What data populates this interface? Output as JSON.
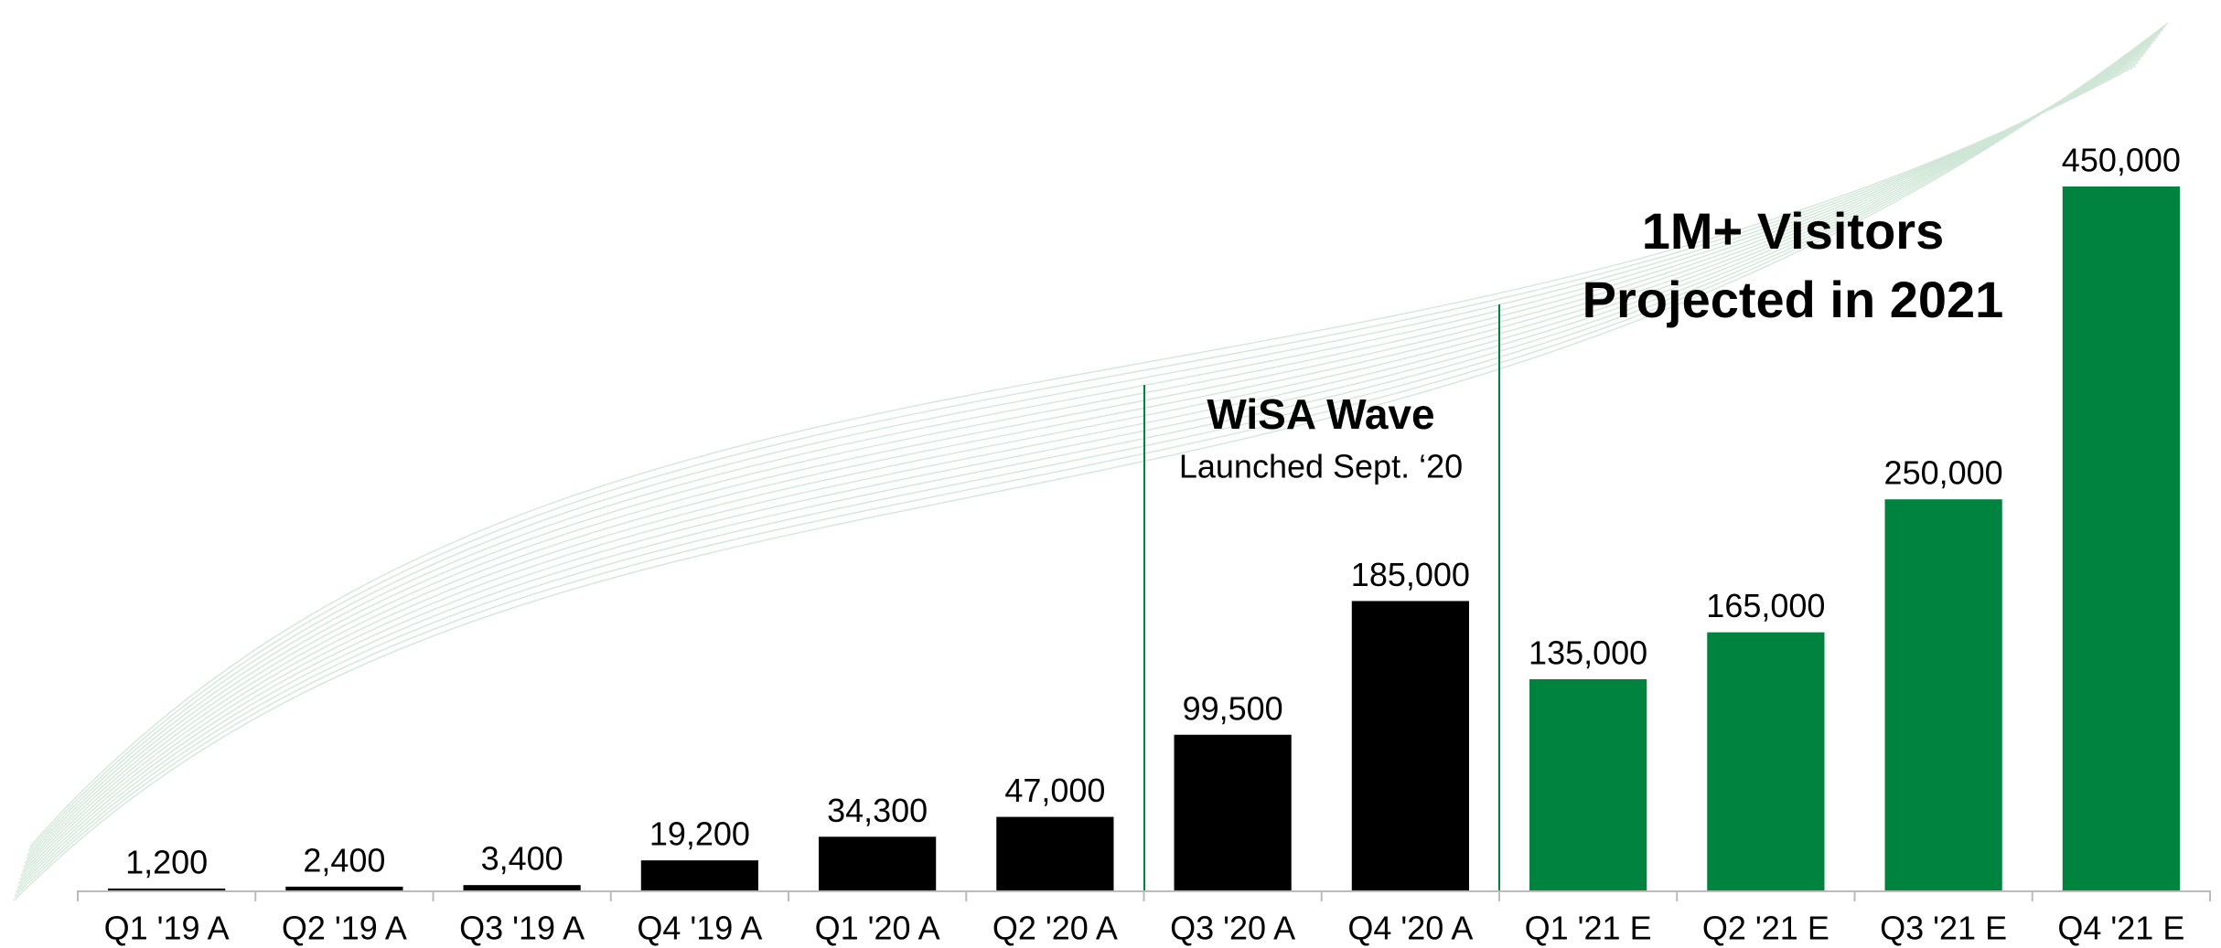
{
  "chart_data": {
    "type": "bar",
    "categories": [
      "Q1 '19 A",
      "Q2 '19 A",
      "Q3 '19 A",
      "Q4 '19 A",
      "Q1 '20 A",
      "Q2 '20 A",
      "Q3 '20 A",
      "Q4 '20 A",
      "Q1 '21 E",
      "Q2 '21 E",
      "Q3 '21 E",
      "Q4 '21 E"
    ],
    "values": [
      1200,
      2400,
      3400,
      19200,
      34300,
      47000,
      99500,
      185000,
      135000,
      165000,
      250000,
      450000
    ],
    "value_labels": [
      "1,200",
      "2,400",
      "3,400",
      "19,200",
      "34,300",
      "47,000",
      "99,500",
      "185,000",
      "135,000",
      "165,000",
      "250,000",
      "450,000"
    ],
    "colors": [
      "#000000",
      "#000000",
      "#000000",
      "#000000",
      "#000000",
      "#000000",
      "#000000",
      "#000000",
      "#00833e",
      "#00833e",
      "#00833e",
      "#00833e"
    ],
    "ylim": [
      0,
      450000
    ],
    "annotations": [
      "WiSA Wave",
      "Launched Sept. ‘20",
      "1M+ Visitors",
      "Projected in 2021"
    ]
  }
}
